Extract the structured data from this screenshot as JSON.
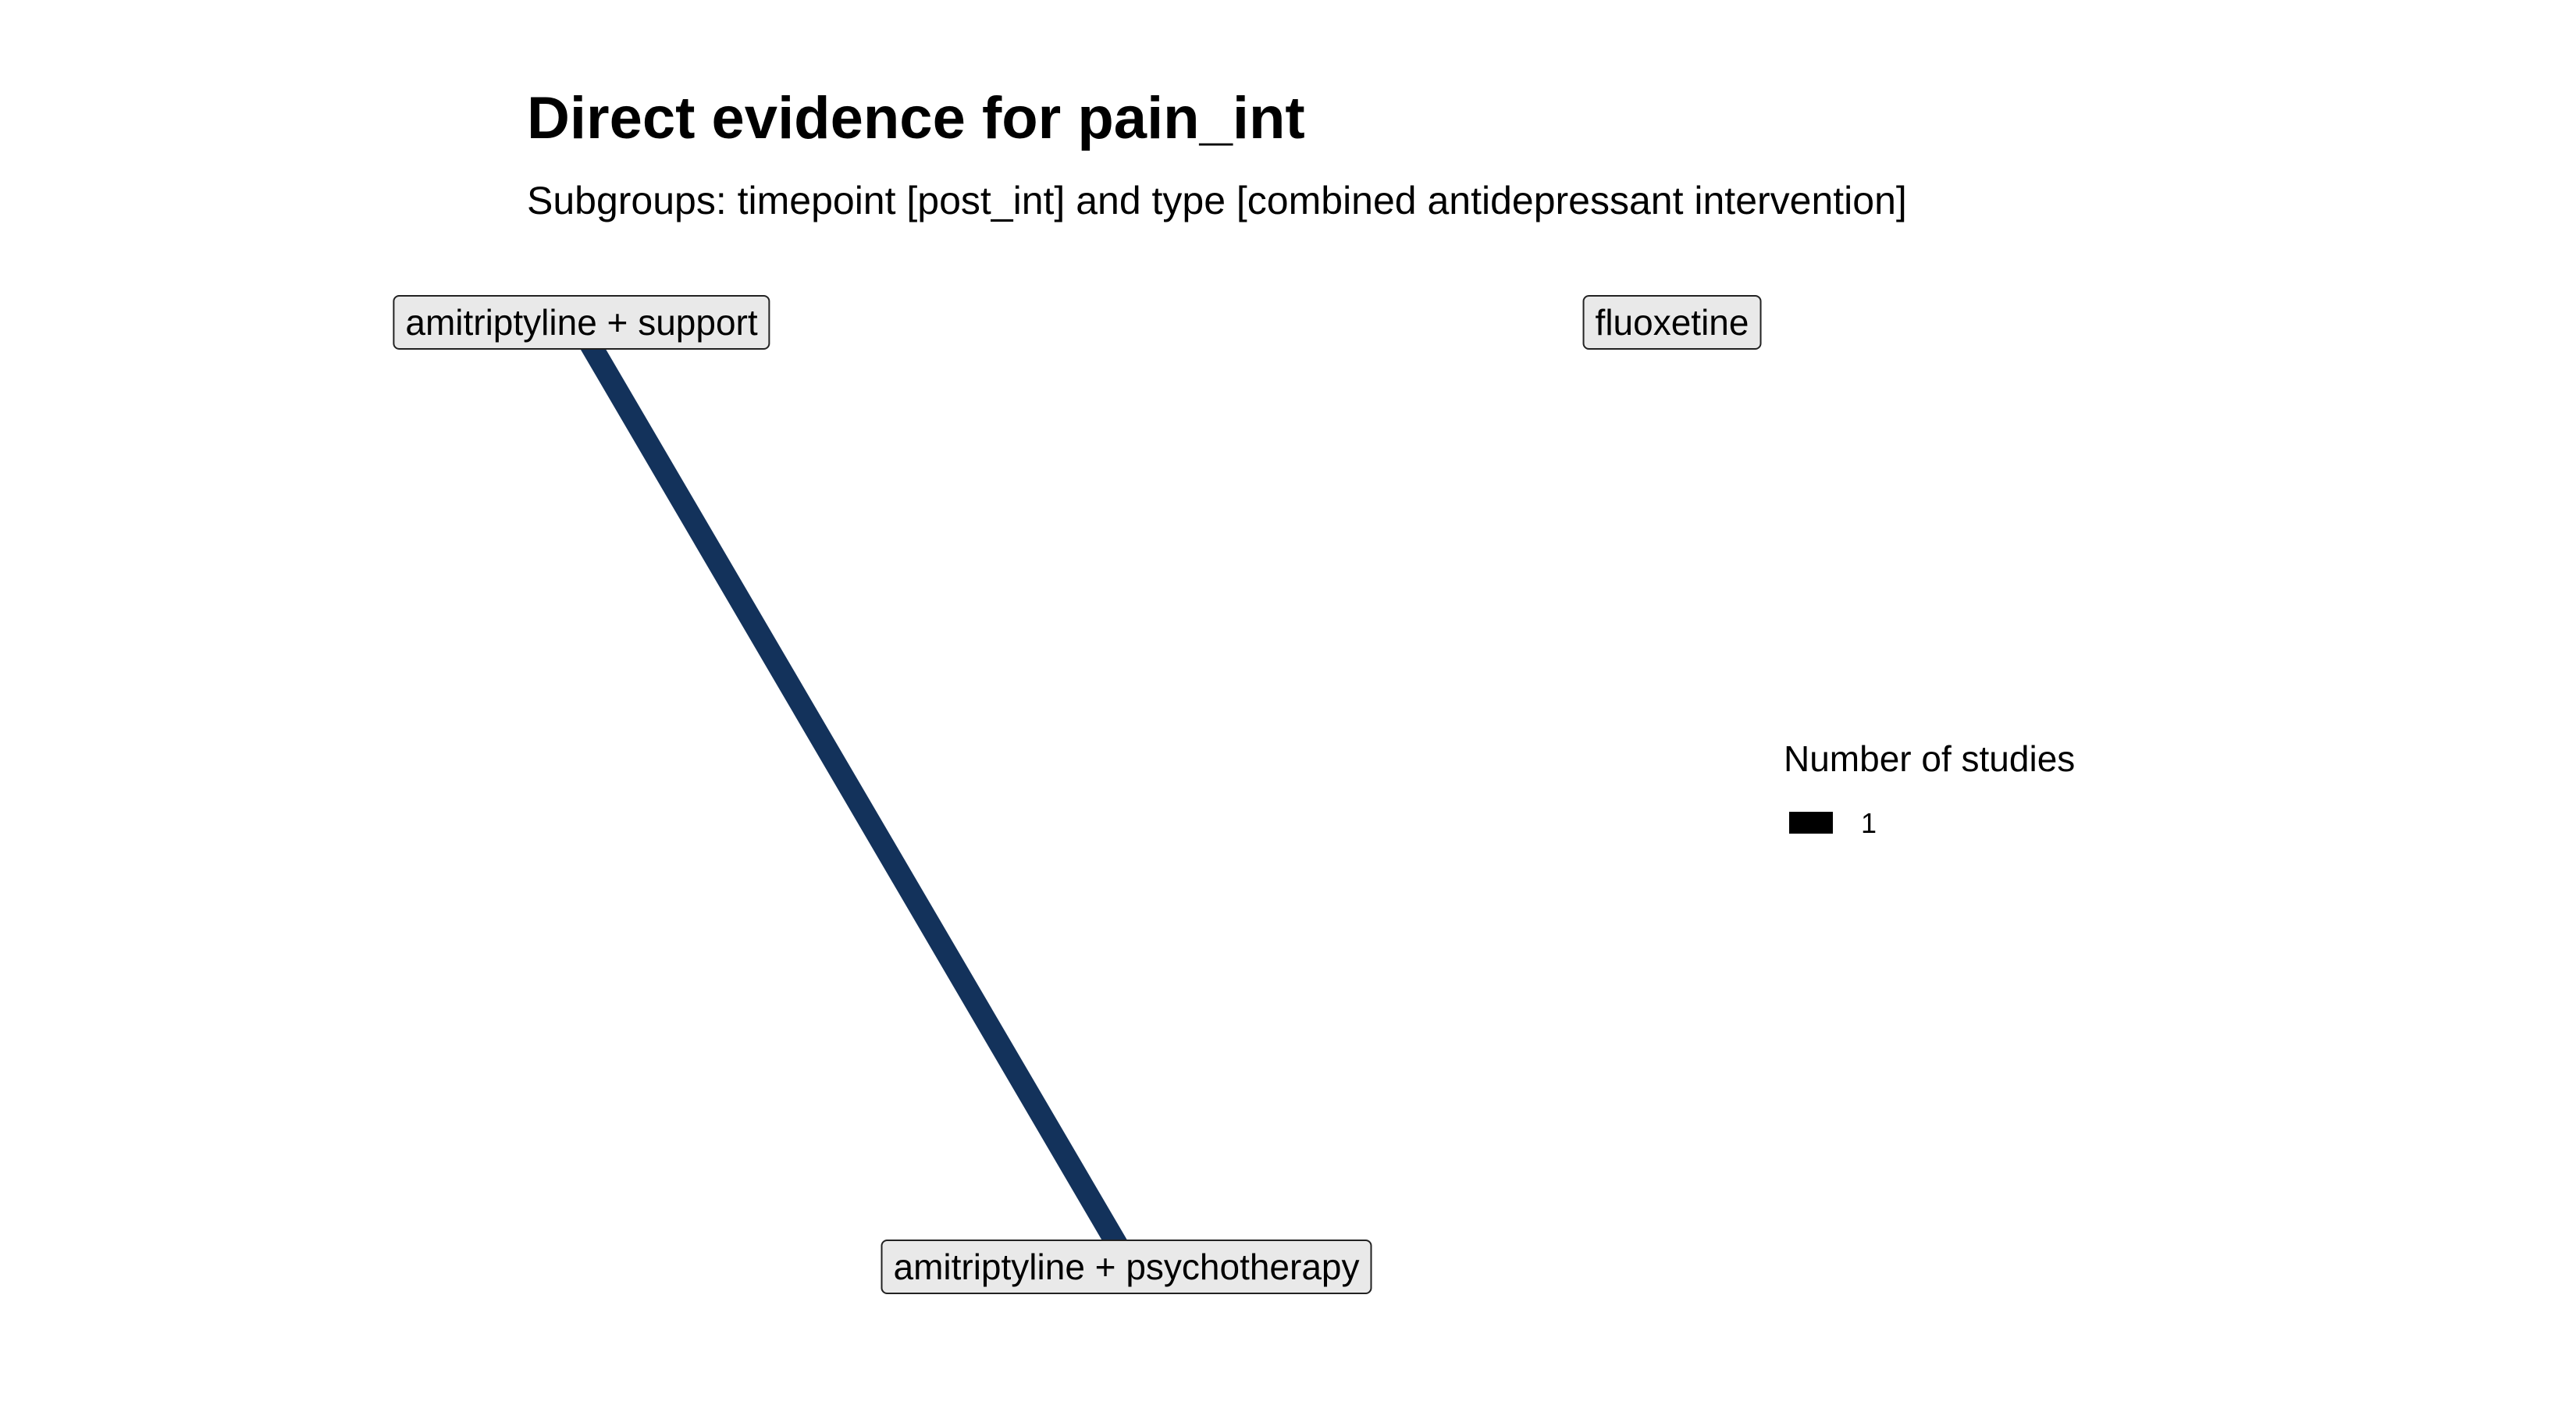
{
  "title": "Direct evidence for pain_int",
  "subtitle": "Subgroups: timepoint [post_int] and type [combined antidepressant intervention]",
  "nodes": [
    {
      "id": "n1",
      "label": "amitriptyline + support"
    },
    {
      "id": "n2",
      "label": "fluoxetine"
    },
    {
      "id": "n3",
      "label": "amitriptyline + psychotherapy"
    }
  ],
  "edges": [
    {
      "from": "n1",
      "to": "n3",
      "studies": 1,
      "color": "#13325B"
    }
  ],
  "legend": {
    "title": "Number of studies",
    "items": [
      {
        "label": "1",
        "color": "#000000"
      }
    ]
  }
}
